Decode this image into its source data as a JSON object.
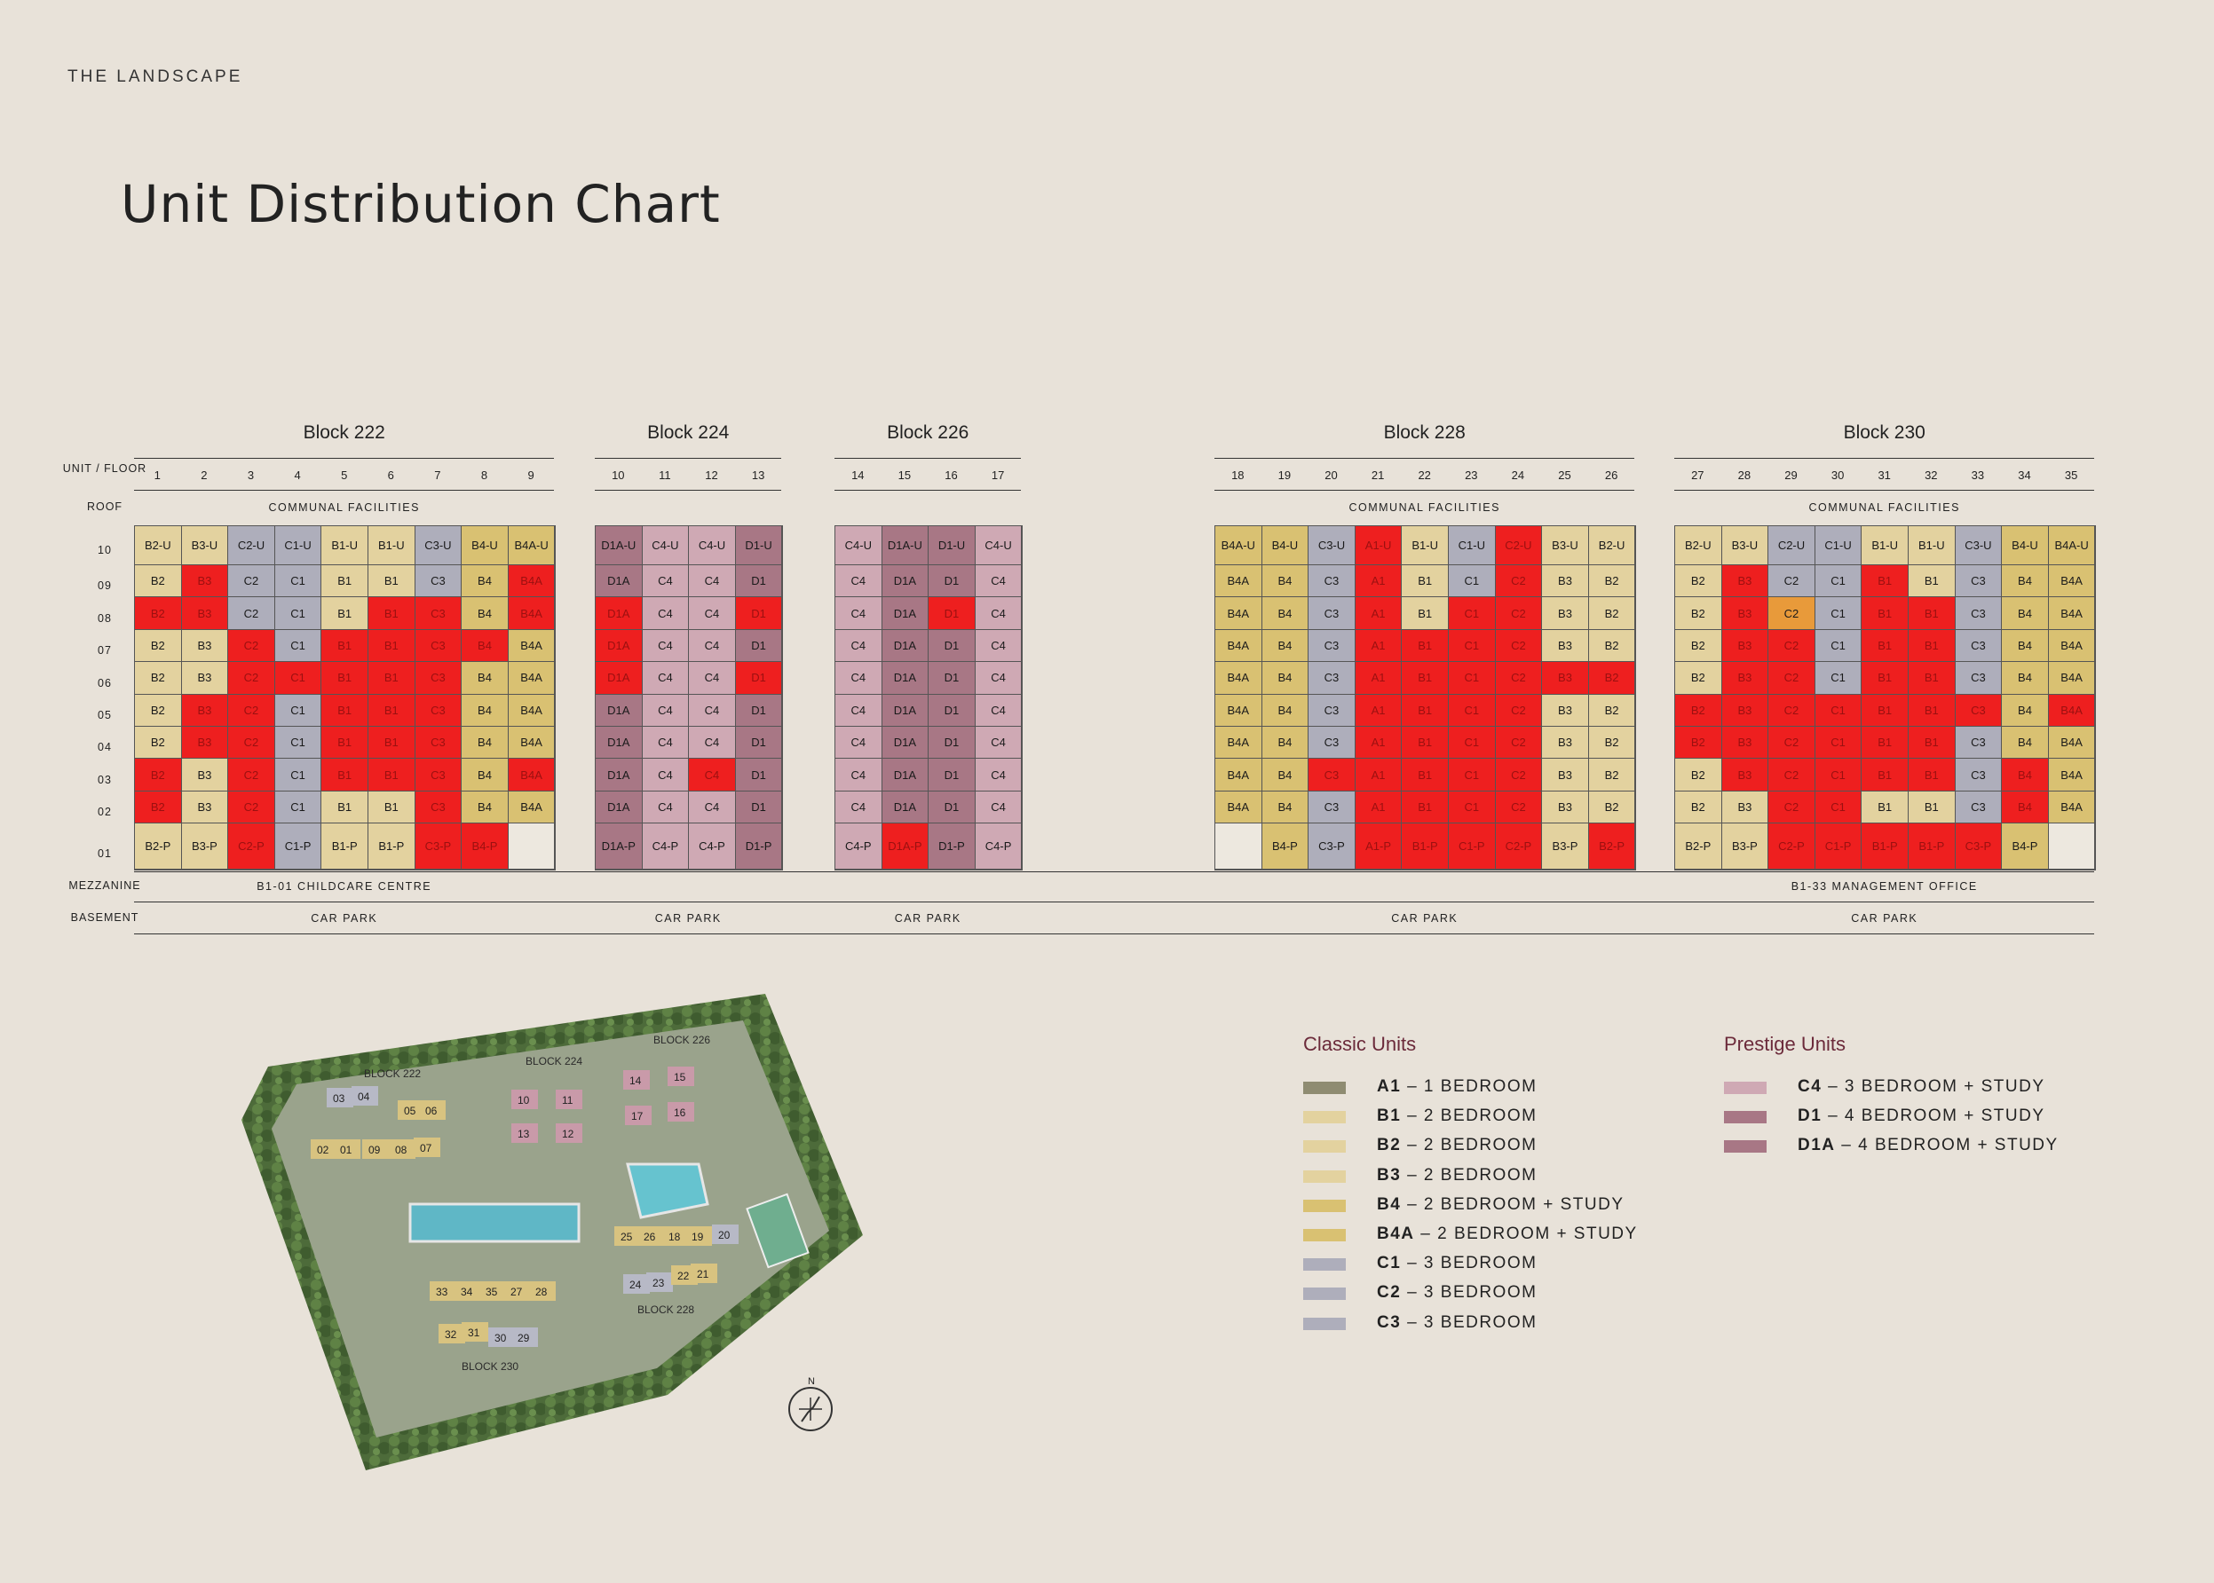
{
  "brand": "THE LANDSCAPE",
  "title": "Unit Distribution Chart",
  "row_labels": {
    "unit_floor": "UNIT / FLOOR",
    "roof": "ROOF",
    "mezzanine": "MEZZANINE",
    "basement": "BASEMENT"
  },
  "floors": [
    "10",
    "09",
    "08",
    "07",
    "06",
    "05",
    "04",
    "03",
    "02",
    "01"
  ],
  "blocks": [
    {
      "name": "Block 222",
      "roof": "COMMUNAL FACILITIES",
      "units": [
        "1",
        "2",
        "3",
        "4",
        "5",
        "6",
        "7",
        "8",
        "9"
      ],
      "rows": [
        [
          "B2-U",
          "B3-U",
          "C2-U",
          "C1-U",
          "B1-U",
          "B1-U",
          "C3-U",
          "B4-U",
          "B4A-U"
        ],
        [
          "B2",
          "B3",
          "C2",
          "C1",
          "B1",
          "B1",
          "C3",
          "B4",
          "B4A"
        ],
        [
          "B2",
          "B3",
          "C2",
          "C1",
          "B1",
          "B1",
          "C3",
          "B4",
          "B4A"
        ],
        [
          "B2",
          "B3",
          "C2",
          "C1",
          "B1",
          "B1",
          "C3",
          "B4",
          "B4A"
        ],
        [
          "B2",
          "B3",
          "C2",
          "C1",
          "B1",
          "B1",
          "C3",
          "B4",
          "B4A"
        ],
        [
          "B2",
          "B3",
          "C2",
          "C1",
          "B1",
          "B1",
          "C3",
          "B4",
          "B4A"
        ],
        [
          "B2",
          "B3",
          "C2",
          "C1",
          "B1",
          "B1",
          "C3",
          "B4",
          "B4A"
        ],
        [
          "B2",
          "B3",
          "C2",
          "C1",
          "B1",
          "B1",
          "C3",
          "B4",
          "B4A"
        ],
        [
          "B2",
          "B3",
          "C2",
          "C1",
          "B1",
          "B1",
          "C3",
          "B4",
          "B4A"
        ],
        [
          "B2-P",
          "B3-P",
          "C2-P",
          "C1-P",
          "B1-P",
          "B1-P",
          "C3-P",
          "B4-P",
          ""
        ]
      ],
      "sold": [
        [
          0,
          0,
          0,
          0,
          0,
          0,
          0,
          0,
          0
        ],
        [
          0,
          1,
          0,
          0,
          0,
          0,
          0,
          0,
          1
        ],
        [
          1,
          1,
          0,
          0,
          0,
          1,
          1,
          0,
          1
        ],
        [
          0,
          0,
          1,
          0,
          1,
          1,
          1,
          1,
          0
        ],
        [
          0,
          0,
          1,
          1,
          1,
          1,
          1,
          0,
          0
        ],
        [
          0,
          1,
          1,
          0,
          1,
          1,
          1,
          0,
          0
        ],
        [
          0,
          1,
          1,
          0,
          1,
          1,
          1,
          0,
          0
        ],
        [
          1,
          0,
          1,
          0,
          1,
          1,
          1,
          0,
          1
        ],
        [
          1,
          0,
          1,
          0,
          0,
          0,
          1,
          0,
          0
        ],
        [
          0,
          0,
          1,
          0,
          0,
          0,
          1,
          1,
          0
        ]
      ]
    },
    {
      "name": "Block 224",
      "roof": "",
      "units": [
        "10",
        "11",
        "12",
        "13"
      ],
      "rows": [
        [
          "D1A-U",
          "C4-U",
          "C4-U",
          "D1-U"
        ],
        [
          "D1A",
          "C4",
          "C4",
          "D1"
        ],
        [
          "D1A",
          "C4",
          "C4",
          "D1"
        ],
        [
          "D1A",
          "C4",
          "C4",
          "D1"
        ],
        [
          "D1A",
          "C4",
          "C4",
          "D1"
        ],
        [
          "D1A",
          "C4",
          "C4",
          "D1"
        ],
        [
          "D1A",
          "C4",
          "C4",
          "D1"
        ],
        [
          "D1A",
          "C4",
          "C4",
          "D1"
        ],
        [
          "D1A",
          "C4",
          "C4",
          "D1"
        ],
        [
          "D1A-P",
          "C4-P",
          "C4-P",
          "D1-P"
        ]
      ],
      "sold": [
        [
          0,
          0,
          0,
          0
        ],
        [
          0,
          0,
          0,
          0
        ],
        [
          1,
          0,
          0,
          1
        ],
        [
          1,
          0,
          0,
          0
        ],
        [
          1,
          0,
          0,
          1
        ],
        [
          0,
          0,
          0,
          0
        ],
        [
          0,
          0,
          0,
          0
        ],
        [
          0,
          0,
          1,
          0
        ],
        [
          0,
          0,
          0,
          0
        ],
        [
          0,
          0,
          0,
          0
        ]
      ]
    },
    {
      "name": "Block 226",
      "roof": "",
      "units": [
        "14",
        "15",
        "16",
        "17"
      ],
      "rows": [
        [
          "C4-U",
          "D1A-U",
          "D1-U",
          "C4-U"
        ],
        [
          "C4",
          "D1A",
          "D1",
          "C4"
        ],
        [
          "C4",
          "D1A",
          "D1",
          "C4"
        ],
        [
          "C4",
          "D1A",
          "D1",
          "C4"
        ],
        [
          "C4",
          "D1A",
          "D1",
          "C4"
        ],
        [
          "C4",
          "D1A",
          "D1",
          "C4"
        ],
        [
          "C4",
          "D1A",
          "D1",
          "C4"
        ],
        [
          "C4",
          "D1A",
          "D1",
          "C4"
        ],
        [
          "C4",
          "D1A",
          "D1",
          "C4"
        ],
        [
          "C4-P",
          "D1A-P",
          "D1-P",
          "C4-P"
        ]
      ],
      "sold": [
        [
          0,
          0,
          0,
          0
        ],
        [
          0,
          0,
          0,
          0
        ],
        [
          0,
          0,
          1,
          0
        ],
        [
          0,
          0,
          0,
          0
        ],
        [
          0,
          0,
          0,
          0
        ],
        [
          0,
          0,
          0,
          0
        ],
        [
          0,
          0,
          0,
          0
        ],
        [
          0,
          0,
          0,
          0
        ],
        [
          0,
          0,
          0,
          0
        ],
        [
          0,
          1,
          0,
          0
        ]
      ]
    },
    {
      "name": "Block 228",
      "roof": "COMMUNAL FACILITIES",
      "units": [
        "18",
        "19",
        "20",
        "21",
        "22",
        "23",
        "24",
        "25",
        "26"
      ],
      "rows": [
        [
          "B4A-U",
          "B4-U",
          "C3-U",
          "A1-U",
          "B1-U",
          "C1-U",
          "C2-U",
          "B3-U",
          "B2-U"
        ],
        [
          "B4A",
          "B4",
          "C3",
          "A1",
          "B1",
          "C1",
          "C2",
          "B3",
          "B2"
        ],
        [
          "B4A",
          "B4",
          "C3",
          "A1",
          "B1",
          "C1",
          "C2",
          "B3",
          "B2"
        ],
        [
          "B4A",
          "B4",
          "C3",
          "A1",
          "B1",
          "C1",
          "C2",
          "B3",
          "B2"
        ],
        [
          "B4A",
          "B4",
          "C3",
          "A1",
          "B1",
          "C1",
          "C2",
          "B3",
          "B2"
        ],
        [
          "B4A",
          "B4",
          "C3",
          "A1",
          "B1",
          "C1",
          "C2",
          "B3",
          "B2"
        ],
        [
          "B4A",
          "B4",
          "C3",
          "A1",
          "B1",
          "C1",
          "C2",
          "B3",
          "B2"
        ],
        [
          "B4A",
          "B4",
          "C3",
          "A1",
          "B1",
          "C1",
          "C2",
          "B3",
          "B2"
        ],
        [
          "B4A",
          "B4",
          "C3",
          "A1",
          "B1",
          "C1",
          "C2",
          "B3",
          "B2"
        ],
        [
          "",
          "B4-P",
          "C3-P",
          "A1-P",
          "B1-P",
          "C1-P",
          "C2-P",
          "B3-P",
          "B2-P"
        ]
      ],
      "sold": [
        [
          0,
          0,
          0,
          1,
          0,
          0,
          1,
          0,
          0
        ],
        [
          0,
          0,
          0,
          1,
          0,
          0,
          1,
          0,
          0
        ],
        [
          0,
          0,
          0,
          1,
          0,
          1,
          1,
          0,
          0
        ],
        [
          0,
          0,
          0,
          1,
          1,
          1,
          1,
          0,
          0
        ],
        [
          0,
          0,
          0,
          1,
          1,
          1,
          1,
          1,
          1
        ],
        [
          0,
          0,
          0,
          1,
          1,
          1,
          1,
          0,
          0
        ],
        [
          0,
          0,
          0,
          1,
          1,
          1,
          1,
          0,
          0
        ],
        [
          0,
          0,
          1,
          1,
          1,
          1,
          1,
          0,
          0
        ],
        [
          0,
          0,
          0,
          1,
          1,
          1,
          1,
          0,
          0
        ],
        [
          0,
          0,
          0,
          1,
          1,
          1,
          1,
          0,
          1
        ]
      ]
    },
    {
      "name": "Block 230",
      "roof": "COMMUNAL FACILITIES",
      "units": [
        "27",
        "28",
        "29",
        "30",
        "31",
        "32",
        "33",
        "34",
        "35"
      ],
      "rows": [
        [
          "B2-U",
          "B3-U",
          "C2-U",
          "C1-U",
          "B1-U",
          "B1-U",
          "C3-U",
          "B4-U",
          "B4A-U"
        ],
        [
          "B2",
          "B3",
          "C2",
          "C1",
          "B1",
          "B1",
          "C3",
          "B4",
          "B4A"
        ],
        [
          "B2",
          "B3",
          "C2",
          "C1",
          "B1",
          "B1",
          "C3",
          "B4",
          "B4A"
        ],
        [
          "B2",
          "B3",
          "C2",
          "C1",
          "B1",
          "B1",
          "C3",
          "B4",
          "B4A"
        ],
        [
          "B2",
          "B3",
          "C2",
          "C1",
          "B1",
          "B1",
          "C3",
          "B4",
          "B4A"
        ],
        [
          "B2",
          "B3",
          "C2",
          "C1",
          "B1",
          "B1",
          "C3",
          "B4",
          "B4A"
        ],
        [
          "B2",
          "B3",
          "C2",
          "C1",
          "B1",
          "B1",
          "C3",
          "B4",
          "B4A"
        ],
        [
          "B2",
          "B3",
          "C2",
          "C1",
          "B1",
          "B1",
          "C3",
          "B4",
          "B4A"
        ],
        [
          "B2",
          "B3",
          "C2",
          "C1",
          "B1",
          "B1",
          "C3",
          "B4",
          "B4A"
        ],
        [
          "B2-P",
          "B3-P",
          "C2-P",
          "C1-P",
          "B1-P",
          "B1-P",
          "C3-P",
          "B4-P",
          ""
        ]
      ],
      "sold": [
        [
          0,
          0,
          0,
          0,
          0,
          0,
          0,
          0,
          0
        ],
        [
          0,
          1,
          0,
          0,
          1,
          0,
          0,
          0,
          0
        ],
        [
          0,
          1,
          2,
          0,
          1,
          1,
          0,
          0,
          0
        ],
        [
          0,
          1,
          1,
          0,
          1,
          1,
          0,
          0,
          0
        ],
        [
          0,
          1,
          1,
          0,
          1,
          1,
          0,
          0,
          0
        ],
        [
          1,
          1,
          1,
          1,
          1,
          1,
          1,
          0,
          1
        ],
        [
          1,
          1,
          1,
          1,
          1,
          1,
          0,
          0,
          0
        ],
        [
          0,
          1,
          1,
          1,
          1,
          1,
          0,
          1,
          0
        ],
        [
          0,
          0,
          1,
          1,
          0,
          0,
          0,
          1,
          0
        ],
        [
          0,
          0,
          1,
          1,
          1,
          1,
          1,
          0,
          0
        ]
      ]
    }
  ],
  "mezzanine": {
    "left": "B1-01 CHILDCARE CENTRE",
    "right": "B1-33 MANAGEMENT OFFICE"
  },
  "basement": [
    "CAR PARK",
    "CAR PARK",
    "CAR PARK",
    "CAR PARK",
    "CAR PARK"
  ],
  "unit_colors": {
    "A1": "#8f8c72",
    "B1": "#e3d29f",
    "B2": "#e3d29f",
    "B3": "#e3d29f",
    "B4": "#d9c172",
    "B4A": "#d9c172",
    "C1": "#aeaebb",
    "C2": "#aeaebb",
    "C3": "#aeaebb",
    "C4": "#cfa9b4",
    "D1": "#a87785",
    "D1A": "#a87785",
    "sold": "#ee1f1f",
    "reserved": "#e89a3a",
    "empty": "#ede8df"
  },
  "legend": {
    "classic_title": "Classic Units",
    "prestige_title": "Prestige Units",
    "classic": [
      {
        "code": "A1",
        "desc": " – 1 BEDROOM",
        "color": "#8f8c72"
      },
      {
        "code": "B1",
        "desc": " – 2 BEDROOM",
        "color": "#e3d29f"
      },
      {
        "code": "B2",
        "desc": " – 2 BEDROOM",
        "color": "#e3d29f"
      },
      {
        "code": "B3",
        "desc": " – 2 BEDROOM",
        "color": "#e3d29f"
      },
      {
        "code": "B4",
        "desc": " – 2 BEDROOM + STUDY",
        "color": "#d9c172"
      },
      {
        "code": "B4A",
        "desc": " – 2 BEDROOM + STUDY",
        "color": "#d9c172"
      },
      {
        "code": "C1",
        "desc": " – 3 BEDROOM",
        "color": "#aeaebb"
      },
      {
        "code": "C2",
        "desc": " – 3 BEDROOM",
        "color": "#aeaebb"
      },
      {
        "code": "C3",
        "desc": " – 3 BEDROOM",
        "color": "#aeaebb"
      }
    ],
    "prestige": [
      {
        "code": "C4",
        "desc": " – 3 BEDROOM + STUDY",
        "color": "#cfa9b4"
      },
      {
        "code": "D1",
        "desc": " – 4 BEDROOM + STUDY",
        "color": "#a87785"
      },
      {
        "code": "D1A",
        "desc": " – 4 BEDROOM + STUDY",
        "color": "#a87785"
      }
    ]
  },
  "site_map": {
    "block_labels": [
      "BLOCK 222",
      "BLOCK 224",
      "BLOCK 226",
      "BLOCK 228",
      "BLOCK 230"
    ],
    "unit_tags": [
      "03",
      "04",
      "05",
      "06",
      "02",
      "01",
      "09",
      "08",
      "07",
      "10",
      "11",
      "12",
      "13",
      "14",
      "15",
      "16",
      "17",
      "25",
      "26",
      "18",
      "19",
      "20",
      "24",
      "23",
      "22",
      "21",
      "33",
      "34",
      "35",
      "27",
      "28",
      "32",
      "31",
      "30",
      "29"
    ],
    "compass": "N"
  }
}
